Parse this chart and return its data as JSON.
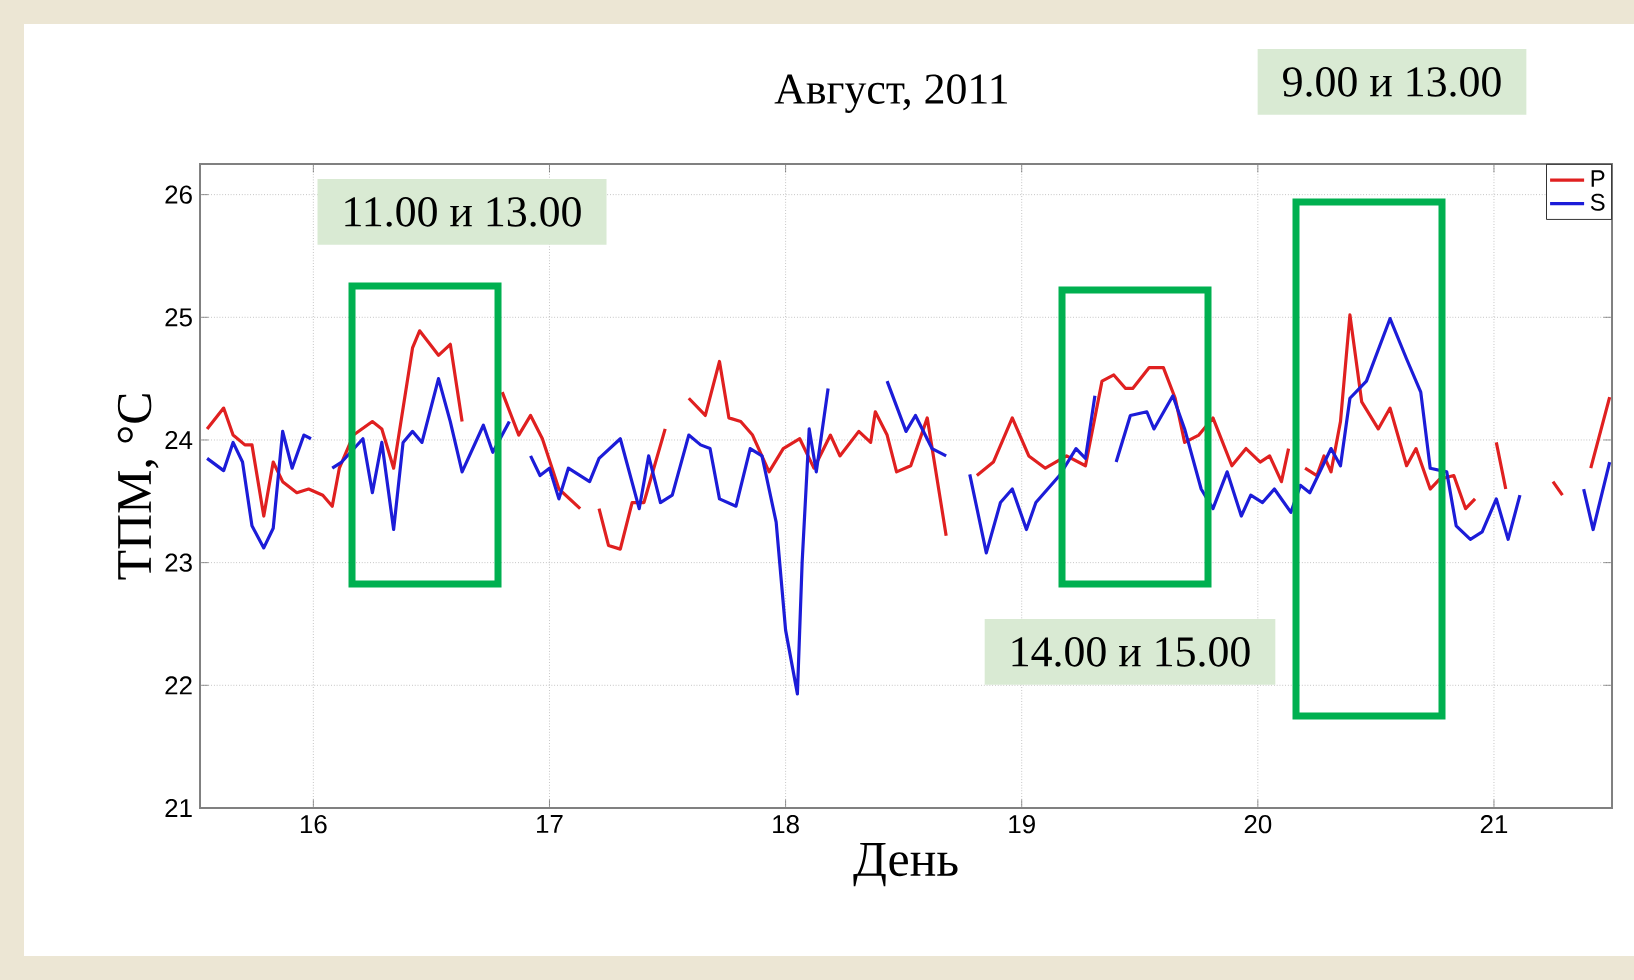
{
  "chart_data": {
    "type": "line",
    "title": "Август, 2011",
    "xlabel": "День",
    "ylabel": "ТПМ, °С",
    "xlim": [
      15.52,
      21.5
    ],
    "ylim": [
      21,
      26.25
    ],
    "xticks": [
      16,
      17,
      18,
      19,
      20,
      21
    ],
    "yticks": [
      21,
      22,
      23,
      24,
      25,
      26
    ],
    "grid": true,
    "legend": "top right",
    "line_style": "solid",
    "series": [
      {
        "name": "P",
        "color": "#e02020",
        "x": [
          15.55,
          15.62,
          15.66,
          15.71,
          15.74,
          15.79,
          15.83,
          15.87,
          15.93,
          15.98,
          16.04,
          16.08,
          16.11,
          16.17,
          16.25,
          16.29,
          16.34,
          16.42,
          16.45,
          16.53,
          16.58,
          16.63,
          16.7,
          16.8,
          16.87,
          16.92,
          16.97,
          17.04,
          17.13,
          17.17,
          17.21,
          17.25,
          17.3,
          17.35,
          17.4,
          17.49,
          17.54,
          17.59,
          17.66,
          17.72,
          17.76,
          17.81,
          17.86,
          17.93,
          17.99,
          18.06,
          18.12,
          18.19,
          18.23,
          18.31,
          18.36,
          18.38,
          18.43,
          18.47,
          18.53,
          18.6,
          18.68,
          18.75,
          18.81,
          18.88,
          18.96,
          19.03,
          19.1,
          19.19,
          19.27,
          19.34,
          19.39,
          19.44,
          19.47,
          19.54,
          19.6,
          19.65,
          19.69,
          19.75,
          19.81,
          19.89,
          19.95,
          20.01,
          20.05,
          20.1,
          20.13,
          20.17,
          20.2,
          20.25,
          20.28,
          20.31,
          20.35,
          20.39,
          20.44,
          20.51,
          20.56,
          20.63,
          20.67,
          20.73,
          20.77,
          20.83,
          20.88,
          20.92,
          20.97,
          21.01,
          21.05,
          21.15,
          21.25,
          21.29,
          21.35,
          21.41,
          21.49
        ],
        "values": [
          24.09,
          24.26,
          24.04,
          23.96,
          23.96,
          23.38,
          23.82,
          23.66,
          23.57,
          23.6,
          23.55,
          23.46,
          23.77,
          24.04,
          24.15,
          24.09,
          23.77,
          24.75,
          24.89,
          24.69,
          24.78,
          24.15,
          null,
          24.39,
          24.04,
          24.2,
          24.01,
          23.6,
          23.44,
          null,
          23.44,
          23.14,
          23.11,
          23.49,
          23.49,
          24.09,
          null,
          24.34,
          24.2,
          24.64,
          24.18,
          24.15,
          24.04,
          23.74,
          23.93,
          24.01,
          23.77,
          24.04,
          23.87,
          24.07,
          23.98,
          24.23,
          24.04,
          23.74,
          23.79,
          24.18,
          23.22,
          null,
          23.71,
          23.82,
          24.18,
          23.87,
          23.77,
          23.87,
          23.79,
          24.48,
          24.53,
          24.42,
          24.42,
          24.59,
          24.59,
          24.34,
          23.98,
          24.04,
          24.18,
          23.79,
          23.93,
          23.82,
          23.87,
          23.66,
          23.93,
          null,
          23.77,
          23.71,
          23.87,
          23.74,
          24.15,
          25.02,
          24.31,
          24.09,
          24.26,
          23.79,
          23.93,
          23.6,
          23.68,
          23.71,
          23.44,
          23.52,
          null,
          23.98,
          23.6,
          null,
          23.66,
          23.55,
          null,
          23.77,
          24.35
        ]
      },
      {
        "name": "S",
        "color": "#1c1cd8",
        "x": [
          15.55,
          15.62,
          15.66,
          15.7,
          15.74,
          15.79,
          15.83,
          15.87,
          15.91,
          15.96,
          15.99,
          16.04,
          16.08,
          16.12,
          16.21,
          16.25,
          16.29,
          16.34,
          16.38,
          16.42,
          16.46,
          16.53,
          16.58,
          16.63,
          16.72,
          16.76,
          16.83,
          16.88,
          16.92,
          16.96,
          17.0,
          17.04,
          17.08,
          17.17,
          17.21,
          17.3,
          17.38,
          17.42,
          17.47,
          17.52,
          17.59,
          17.64,
          17.68,
          17.72,
          17.79,
          17.85,
          17.9,
          17.96,
          18.0,
          18.05,
          18.07,
          18.1,
          18.13,
          18.18,
          18.3,
          18.43,
          18.51,
          18.55,
          18.62,
          18.68,
          18.73,
          18.78,
          18.85,
          18.91,
          18.96,
          19.02,
          19.06,
          19.16,
          19.23,
          19.27,
          19.31,
          19.35,
          19.4,
          19.46,
          19.53,
          19.56,
          19.64,
          19.69,
          19.76,
          19.81,
          19.87,
          19.93,
          19.97,
          20.02,
          20.07,
          20.14,
          20.18,
          20.22,
          20.31,
          20.35,
          20.39,
          20.46,
          20.56,
          20.63,
          20.69,
          20.73,
          20.8,
          20.84,
          20.9,
          20.95,
          21.01,
          21.06,
          21.11,
          21.25,
          21.38,
          21.42,
          21.49
        ],
        "values": [
          23.85,
          23.75,
          23.98,
          23.82,
          23.3,
          23.12,
          23.28,
          24.07,
          23.77,
          24.04,
          24.01,
          null,
          23.77,
          23.82,
          24.01,
          23.57,
          23.98,
          23.27,
          23.98,
          24.07,
          23.98,
          24.5,
          24.15,
          23.74,
          24.12,
          23.9,
          24.15,
          null,
          23.87,
          23.71,
          23.77,
          23.52,
          23.77,
          23.66,
          23.85,
          24.01,
          23.44,
          23.87,
          23.49,
          23.55,
          24.04,
          23.96,
          23.93,
          23.52,
          23.46,
          23.93,
          23.87,
          23.33,
          22.45,
          21.93,
          23.0,
          24.09,
          23.74,
          24.42,
          null,
          24.48,
          24.07,
          24.2,
          23.93,
          23.87,
          null,
          23.72,
          23.08,
          23.49,
          23.6,
          23.27,
          23.49,
          23.71,
          23.93,
          23.85,
          24.36,
          null,
          23.82,
          24.2,
          24.23,
          24.09,
          24.36,
          24.09,
          23.6,
          23.44,
          23.74,
          23.38,
          23.55,
          23.49,
          23.6,
          23.41,
          23.63,
          23.57,
          23.93,
          23.79,
          24.34,
          24.48,
          24.99,
          24.66,
          24.39,
          23.77,
          23.74,
          23.3,
          23.19,
          23.25,
          23.52,
          23.19,
          23.55,
          null,
          23.6,
          23.27,
          23.82
        ]
      }
    ],
    "annotations": [
      "11.00 и 13.00",
      "14.00 и 15.00",
      "9.00 и 13.00"
    ]
  }
}
